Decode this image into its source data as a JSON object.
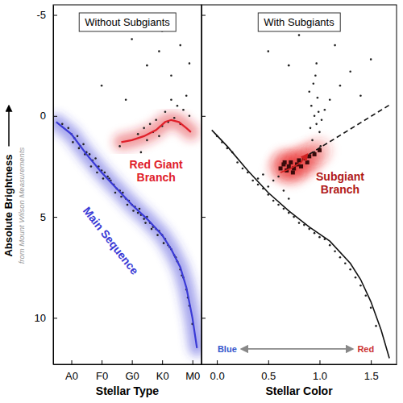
{
  "chart_data": [
    {
      "type": "scatter",
      "title": "Without Subgiants",
      "xlabel": "Stellar Type",
      "ylabel": "Absolute Brightness",
      "ylabel_note": "from Mount Wilson Measurements",
      "xlim": [
        -0.6,
        4.3
      ],
      "ylim": [
        12.3,
        -5.5
      ],
      "xticks": [
        {
          "value": 0,
          "label": "A0"
        },
        {
          "value": 1,
          "label": "F0"
        },
        {
          "value": 2,
          "label": "G0"
        },
        {
          "value": 3,
          "label": "K0"
        },
        {
          "value": 4,
          "label": "M0"
        }
      ],
      "yticks": [
        -5,
        0,
        5,
        10
      ],
      "series": [
        {
          "type": "scatter",
          "color": "#222222",
          "marker": "dot",
          "x": [
            -0.3,
            -0.1,
            0,
            0.1,
            0.2,
            0.3,
            0.4,
            0.5,
            0.6,
            0.7,
            0.8,
            0.9,
            1.0,
            1.1,
            1.2,
            1.3,
            1.4,
            1.5,
            1.6,
            1.7,
            1.8,
            1.9,
            2.0,
            2.1,
            2.2,
            2.3,
            2.4,
            2.5,
            2.6,
            2.7,
            2.8,
            2.9,
            3.0,
            3.1,
            3.2,
            3.3,
            3.4,
            3.5,
            3.6,
            3.7,
            3.8,
            3.9,
            4.0,
            0.05,
            0.25,
            0.45,
            0.65,
            0.85,
            1.05,
            1.25,
            1.45,
            1.65,
            1.85,
            2.05,
            2.25,
            2.45,
            2.65,
            2.85,
            3.05,
            3.25,
            3.45,
            3.65,
            3.85
          ],
          "values": [
            0.4,
            0.6,
            0.9,
            1.1,
            1.0,
            1.5,
            1.4,
            1.8,
            1.9,
            2.2,
            2.1,
            2.5,
            2.7,
            2.8,
            3.0,
            3.2,
            3.4,
            3.6,
            3.7,
            3.8,
            4.1,
            4.2,
            4.4,
            4.5,
            4.8,
            4.9,
            5.1,
            5.0,
            5.3,
            5.5,
            5.6,
            5.7,
            5.9,
            6.1,
            6.4,
            6.6,
            6.9,
            7.2,
            7.6,
            8.0,
            8.6,
            9.4,
            10.3,
            1.3,
            1.6,
            1.9,
            2.5,
            2.8,
            3.1,
            3.1,
            3.8,
            4.0,
            4.4,
            4.7,
            4.6,
            5.3,
            5.6,
            5.9,
            6.3,
            6.5,
            7.0,
            7.9,
            9.0
          ]
        },
        {
          "type": "scatter",
          "color": "#222222",
          "marker": "dot",
          "x": [
            2.2,
            2.4,
            2.5,
            2.6,
            2.7,
            2.8,
            2.9,
            3.0,
            3.1,
            3.2,
            3.3,
            3.4,
            3.5,
            3.6,
            3.7,
            3.8,
            3.9,
            2.5,
            2.9,
            3.3,
            3.6,
            3.9,
            1.0,
            1.8,
            2.0,
            3.0,
            2.3,
            1.6
          ],
          "values": [
            0.9,
            0.6,
            1.2,
            0.4,
            0.8,
            0.2,
            1.0,
            0.5,
            -0.2,
            0.3,
            -0.8,
            0.1,
            -0.5,
            0.4,
            -0.3,
            -1.0,
            0.0,
            -2.5,
            -3.2,
            -2.0,
            -3.5,
            -2.6,
            -1.5,
            -0.8,
            -3.8,
            -4.2,
            1.8,
            1.5
          ]
        },
        {
          "type": "line",
          "color": "#3a3ad6",
          "line_style": "glow",
          "x": [
            -0.5,
            0,
            0.5,
            1,
            1.5,
            2,
            2.5,
            3,
            3.3,
            3.6,
            3.8,
            4.0,
            4.15
          ],
          "values": [
            0.3,
            0.9,
            1.9,
            2.8,
            3.6,
            4.4,
            5.1,
            5.9,
            6.6,
            7.5,
            8.5,
            10.0,
            11.5
          ]
        },
        {
          "type": "line",
          "color": "#e0202a",
          "line_style": "glow",
          "x": [
            1.65,
            2.0,
            2.4,
            2.8,
            3.1,
            3.3,
            3.55,
            3.8,
            3.95
          ],
          "values": [
            1.3,
            1.2,
            1.0,
            0.7,
            0.3,
            0.2,
            0.3,
            0.6,
            0.8
          ]
        }
      ],
      "annotations": [
        {
          "lines": [
            "Red Giant",
            "Branch"
          ],
          "x": 2.8,
          "y": 2.6,
          "color": "#e0202a"
        },
        {
          "lines": [
            "Main Sequence"
          ],
          "x": 1.2,
          "y": 6.3,
          "color": "#3a3ad6",
          "slanted": true
        }
      ]
    },
    {
      "type": "scatter",
      "title": "With Subgiants",
      "xlabel": "Stellar Color",
      "xlim": [
        -0.15,
        1.75
      ],
      "ylim": [
        12.3,
        -5.5
      ],
      "xticks": [
        {
          "value": 0,
          "label": "0.0"
        },
        {
          "value": 0.5,
          "label": "0.5"
        },
        {
          "value": 1,
          "label": "1.0"
        },
        {
          "value": 1.5,
          "label": "1.5"
        }
      ],
      "yticks": [
        -5,
        0,
        5,
        10
      ],
      "tick_labels": "x",
      "series": [
        {
          "type": "scatter",
          "color": "#222222",
          "marker": "dot",
          "x": [
            0.0,
            0.05,
            0.1,
            0.15,
            0.2,
            0.25,
            0.3,
            0.35,
            0.4,
            0.45,
            0.5,
            0.55,
            0.6,
            0.65,
            0.7,
            0.75,
            0.8,
            0.85,
            0.9,
            0.95,
            1.0,
            1.05,
            1.1,
            1.15,
            1.2,
            1.25,
            1.3,
            1.35,
            1.4,
            1.45,
            1.5,
            1.55
          ],
          "values": [
            1.0,
            1.3,
            1.6,
            1.8,
            2.3,
            2.6,
            2.8,
            3.2,
            3.4,
            3.6,
            3.9,
            4.2,
            4.4,
            4.6,
            4.8,
            5.0,
            5.3,
            5.4,
            5.6,
            5.8,
            6.0,
            6.1,
            6.4,
            6.7,
            7.0,
            7.3,
            7.6,
            8.0,
            8.4,
            8.9,
            9.5,
            10.4
          ]
        },
        {
          "type": "scatter",
          "color": "#222222",
          "marker": "dot",
          "x": [
            0.9,
            0.92,
            0.95,
            0.97,
            1.0,
            0.93,
            0.98,
            1.02,
            0.96,
            1.05,
            1.1,
            1.2,
            1.3,
            1.4,
            0.5,
            0.7,
            0.8,
            1.15,
            1.5,
            0.55,
            0.6,
            0.5,
            0.45,
            0.4,
            0.65,
            0.7,
            0.94,
            0.99,
            0.91,
            1.01,
            0.97,
            0.95
          ],
          "values": [
            -1.2,
            -0.5,
            0.0,
            0.4,
            0.8,
            1.2,
            -0.9,
            0.2,
            -2.0,
            -0.3,
            -0.8,
            -1.5,
            -2.2,
            -1.0,
            -3.2,
            -2.5,
            -4.0,
            -3.5,
            -2.8,
            3.2,
            3.0,
            3.5,
            2.9,
            3.1,
            3.7,
            4.1,
            -1.6,
            -0.2,
            0.6,
            1.5,
            -2.6,
            1.8
          ]
        },
        {
          "type": "scatter",
          "color": "#3a0a0a",
          "marker": "square",
          "line_style": "glow",
          "x": [
            0.62,
            0.65,
            0.68,
            0.7,
            0.72,
            0.75,
            0.78,
            0.8,
            0.82,
            0.85,
            0.88,
            0.9,
            0.95,
            1.0,
            0.66,
            0.74
          ],
          "values": [
            2.6,
            2.4,
            2.7,
            2.5,
            2.3,
            2.6,
            2.4,
            2.2,
            2.5,
            2.1,
            2.3,
            2.0,
            1.9,
            1.7,
            2.3,
            2.8
          ]
        },
        {
          "type": "line",
          "color": "#111111",
          "line_style": "solid",
          "x": [
            -0.05,
            0.1,
            0.3,
            0.5,
            0.7,
            0.9,
            1.1,
            1.3,
            1.4,
            1.5,
            1.6,
            1.68
          ],
          "values": [
            0.7,
            1.5,
            2.7,
            3.8,
            4.7,
            5.5,
            6.2,
            7.3,
            8.1,
            9.2,
            10.6,
            12.0
          ]
        },
        {
          "type": "line",
          "color": "#111111",
          "line_style": "dashed",
          "x": [
            0.9,
            1.7
          ],
          "values": [
            1.9,
            -0.6
          ]
        },
        {
          "type": "line",
          "color": "#d02020",
          "line_style": "solid",
          "marker": "arrow",
          "x": [
            0.62,
            0.72,
            0.82,
            0.88
          ],
          "values": [
            2.8,
            2.6,
            2.3,
            1.9
          ]
        }
      ],
      "annotations": [
        {
          "lines": [
            "Subgiant",
            "Branch"
          ],
          "x": 1.2,
          "y": 3.2,
          "color": "#b01818"
        },
        {
          "lines": [
            "Blue"
          ],
          "x": 0.1,
          "y": 11.7,
          "color": "#3355cc",
          "arrow": true
        },
        {
          "lines": [
            "Red"
          ],
          "x": 1.45,
          "y": 11.7,
          "color": "#cc3333",
          "arrow": true
        }
      ]
    }
  ]
}
